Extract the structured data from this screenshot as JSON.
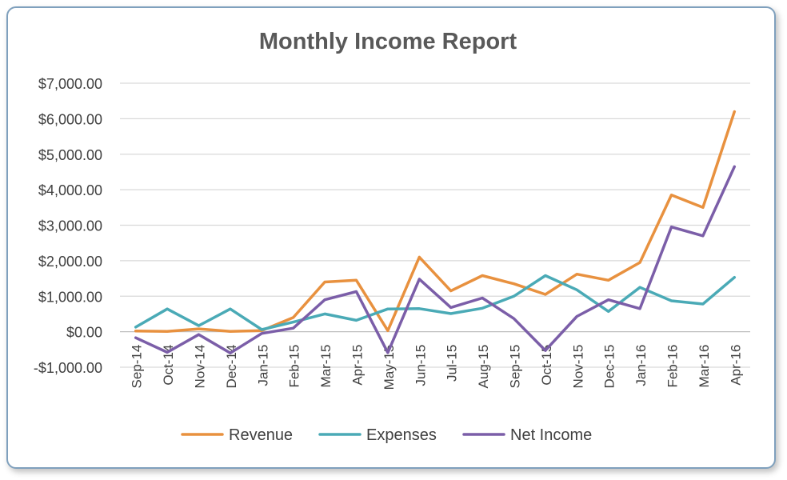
{
  "chart_data": {
    "type": "line",
    "title": "Monthly Income Report",
    "xlabel": "",
    "ylabel": "",
    "categories": [
      "Sep-14",
      "Oct-14",
      "Nov-14",
      "Dec-14",
      "Jan-15",
      "Feb-15",
      "Mar-15",
      "Apr-15",
      "May-15",
      "Jun-15",
      "Jul-15",
      "Aug-15",
      "Sep-15",
      "Oct-15",
      "Nov-15",
      "Dec-15",
      "Jan-16",
      "Feb-16",
      "Mar-16",
      "Apr-16"
    ],
    "ylim": [
      -1000,
      7000
    ],
    "yticks": [
      -1000,
      0,
      1000,
      2000,
      3000,
      4000,
      5000,
      6000,
      7000
    ],
    "ytick_labels": [
      "-$1,000.00",
      "$0.00",
      "$1,000.00",
      "$2,000.00",
      "$3,000.00",
      "$4,000.00",
      "$5,000.00",
      "$6,000.00",
      "$7,000.00"
    ],
    "grid": "horizontal",
    "legend_position": "bottom",
    "series": [
      {
        "name": "Revenue",
        "color": "#e8913f",
        "values": [
          20,
          10,
          80,
          10,
          30,
          400,
          1400,
          1450,
          30,
          2100,
          1150,
          1580,
          1350,
          1050,
          1620,
          1450,
          1950,
          3850,
          3500,
          6200
        ]
      },
      {
        "name": "Expenses",
        "color": "#4aaab6",
        "values": [
          130,
          640,
          170,
          640,
          60,
          270,
          500,
          320,
          640,
          650,
          510,
          660,
          1000,
          1580,
          1180,
          570,
          1250,
          870,
          780,
          1530
        ]
      },
      {
        "name": "Net Income",
        "color": "#7b5ea8",
        "values": [
          -170,
          -580,
          -80,
          -600,
          -50,
          100,
          900,
          1130,
          -590,
          1480,
          680,
          950,
          370,
          -530,
          430,
          900,
          650,
          2950,
          2700,
          4650
        ]
      }
    ]
  }
}
